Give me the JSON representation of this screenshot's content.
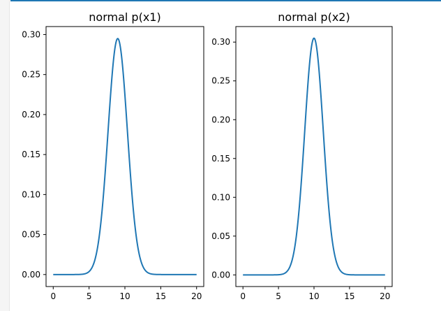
{
  "colors": {
    "line": "#1f77b4",
    "axis": "#000000",
    "accent": "#1f77b4"
  },
  "chart_data": [
    {
      "type": "line",
      "title": "normal p(x1)",
      "xlabel": "",
      "ylabel": "",
      "mean": 9,
      "peak": 0.295,
      "xlim": [
        -1,
        21
      ],
      "ylim": [
        -0.015,
        0.31
      ],
      "grid": false,
      "xticks": [
        0,
        5,
        10,
        15,
        20
      ],
      "yticks": [
        0.0,
        0.05,
        0.1,
        0.15,
        0.2,
        0.25,
        0.3
      ],
      "xtick_labels": [
        "0",
        "5",
        "10",
        "15",
        "20"
      ],
      "ytick_labels": [
        "0.00",
        "0.05",
        "0.10",
        "0.15",
        "0.20",
        "0.25",
        "0.30"
      ],
      "x": [
        0,
        1,
        2,
        3,
        4,
        5,
        6,
        7,
        7.5,
        8,
        8.5,
        9,
        9.5,
        10,
        10.5,
        11,
        12,
        13,
        14,
        15,
        16,
        17,
        18,
        19,
        20
      ],
      "y": [
        0,
        0,
        0,
        0,
        0.0003,
        0.004,
        0.03,
        0.112,
        0.172,
        0.23,
        0.278,
        0.295,
        0.278,
        0.23,
        0.172,
        0.112,
        0.03,
        0.004,
        0.0003,
        0,
        0,
        0,
        0,
        0,
        0
      ]
    },
    {
      "type": "line",
      "title": "normal p(x2)",
      "xlabel": "",
      "ylabel": "",
      "mean": 10,
      "peak": 0.305,
      "xlim": [
        -1,
        21
      ],
      "ylim": [
        -0.015,
        0.32
      ],
      "grid": false,
      "xticks": [
        0,
        5,
        10,
        15,
        20
      ],
      "yticks": [
        0.0,
        0.05,
        0.1,
        0.15,
        0.2,
        0.25,
        0.3
      ],
      "xtick_labels": [
        "0",
        "5",
        "10",
        "15",
        "20"
      ],
      "ytick_labels": [
        "0.00",
        "0.05",
        "0.10",
        "0.15",
        "0.20",
        "0.25",
        "0.30"
      ],
      "x": [
        0,
        1,
        2,
        3,
        4,
        5,
        6,
        7,
        8,
        8.5,
        9,
        9.5,
        10,
        10.5,
        11,
        11.5,
        12,
        13,
        14,
        15,
        16,
        17,
        18,
        19,
        20
      ],
      "y": [
        0,
        0,
        0,
        0,
        0,
        0.0003,
        0.004,
        0.03,
        0.118,
        0.178,
        0.236,
        0.285,
        0.305,
        0.285,
        0.236,
        0.178,
        0.118,
        0.03,
        0.004,
        0.0003,
        0,
        0,
        0,
        0,
        0
      ]
    }
  ]
}
